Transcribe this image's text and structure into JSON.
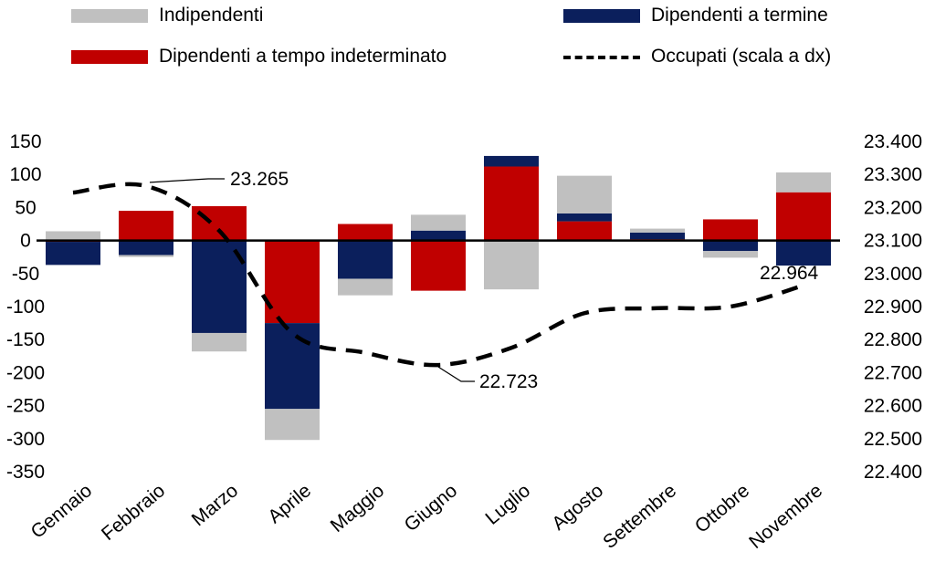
{
  "chart_data": {
    "type": "bar",
    "stacked": true,
    "categories": [
      "Gennaio",
      "Febbraio",
      "Marzo",
      "Aprile",
      "Maggio",
      "Giugno",
      "Luglio",
      "Agosto",
      "Settembre",
      "Ottobre",
      "Novembre"
    ],
    "series": [
      {
        "name": "Indipendenti",
        "color": "#c0c0c0",
        "axis": "left",
        "values": [
          14,
          -3,
          -28,
          -47,
          -25,
          24,
          -74,
          57,
          6,
          -10,
          30
        ]
      },
      {
        "name": "Dipendenti a termine",
        "color": "#0b1f5c",
        "axis": "left",
        "values": [
          -35,
          -22,
          -140,
          -130,
          -58,
          15,
          16,
          12,
          10,
          -16,
          -38
        ]
      },
      {
        "name": "Dipendenti a tempo indeterminato",
        "color": "#c00000",
        "axis": "left",
        "values": [
          -2,
          45,
          52,
          -125,
          25,
          -76,
          112,
          29,
          2,
          32,
          73
        ]
      },
      {
        "name": "Occupati (scala a dx)",
        "color": "#000000",
        "axis": "right",
        "style": "dashed-line",
        "values": [
          23245,
          23265,
          23130,
          22820,
          22760,
          22723,
          22775,
          22880,
          22895,
          22900,
          22964
        ]
      }
    ],
    "y_left": {
      "min": -350,
      "max": 150,
      "step": 50,
      "ticks": [
        "150",
        "100",
        "50",
        "0",
        "-50",
        "-100",
        "-150",
        "-200",
        "-250",
        "-300",
        "-350"
      ]
    },
    "y_right": {
      "min": 22400,
      "max": 23400,
      "step": 100,
      "ticks": [
        "23.400",
        "23.300",
        "23.200",
        "23.100",
        "23.000",
        "22.900",
        "22.800",
        "22.700",
        "22.600",
        "22.500",
        "22.400"
      ]
    },
    "annotations": [
      {
        "text": "23.265",
        "category": "Febbraio",
        "value": 23265
      },
      {
        "text": "22.723",
        "category": "Giugno",
        "value": 22723
      },
      {
        "text": "22.964",
        "category": "Novembre",
        "value": 22964
      }
    ],
    "legend_position": "top",
    "grid": false
  },
  "legend": {
    "items": [
      {
        "label": "Indipendenti",
        "color": "#c0c0c0",
        "kind": "bar"
      },
      {
        "label": "Dipendenti a termine",
        "color": "#0b1f5c",
        "kind": "bar"
      },
      {
        "label": "Dipendenti a tempo indeterminato",
        "color": "#c00000",
        "kind": "bar"
      },
      {
        "label": "Occupati (scala a dx)",
        "color": "#000000",
        "kind": "dashed-line"
      }
    ]
  }
}
